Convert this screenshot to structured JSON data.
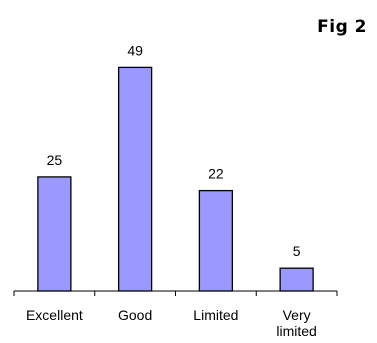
{
  "figure_label": "Fig 2",
  "chart_data": {
    "type": "bar",
    "title": "",
    "xlabel": "",
    "ylabel": "",
    "categories": [
      "Excellent",
      "Good",
      "Limited",
      "Very limited"
    ],
    "category_lines": [
      [
        "Excellent"
      ],
      [
        "Good"
      ],
      [
        "Limited"
      ],
      [
        "Very",
        "limited"
      ]
    ],
    "values": [
      25,
      49,
      22,
      5
    ],
    "ylim": [
      0,
      55
    ],
    "data_labels": true,
    "grid": false,
    "legend": "none",
    "bar_color": "#9999ff",
    "bar_edge_color": "#000000"
  }
}
